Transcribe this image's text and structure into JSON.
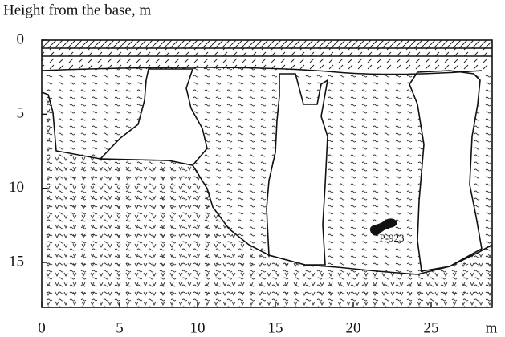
{
  "title": "Height from the base, m",
  "y_axis": {
    "ticks": [
      0,
      5,
      10,
      15
    ]
  },
  "x_axis": {
    "ticks": [
      0,
      5,
      10,
      15,
      20,
      25
    ],
    "unit": "m"
  },
  "sample_label": "P-923"
}
